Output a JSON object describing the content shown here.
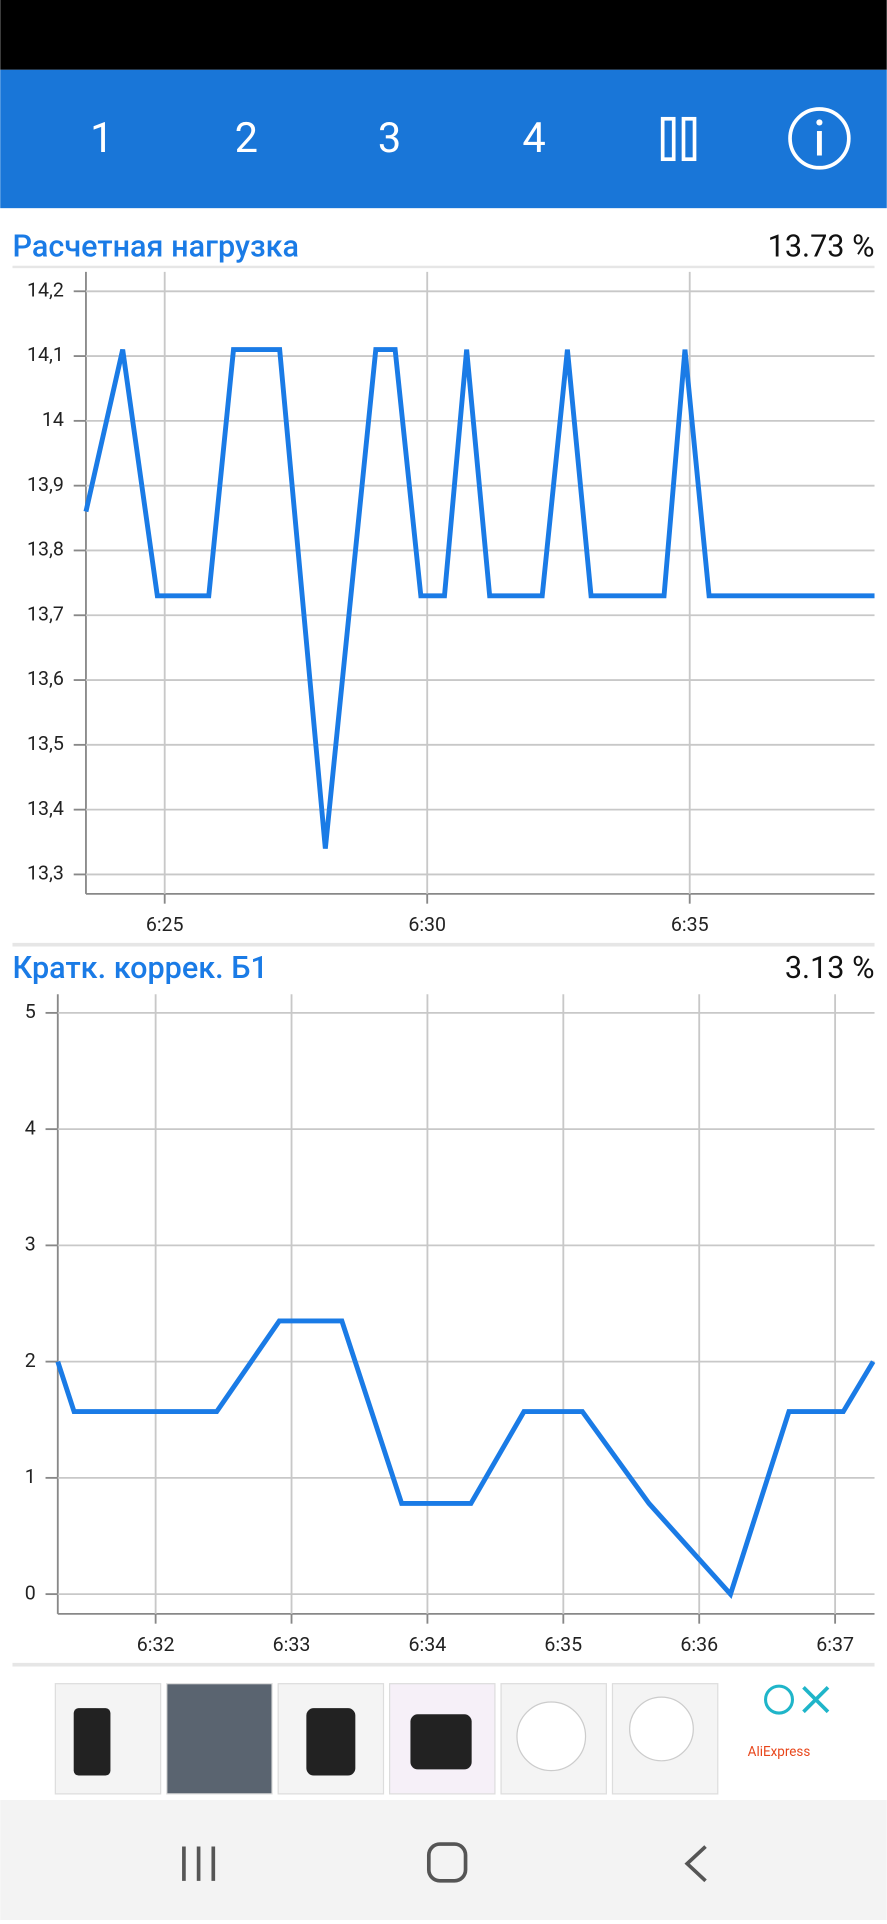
{
  "toolbar": {
    "tabs": [
      "1",
      "2",
      "3",
      "4"
    ]
  },
  "charts": [
    {
      "type": "line",
      "title": "Расчетная нагрузка",
      "current": "13.73 %",
      "color": "#1a7be6",
      "grid": true,
      "x": [
        383.5,
        384.2,
        384.86,
        385.84,
        386.31,
        387.19,
        388.06,
        389.02,
        389.39,
        389.88,
        390.33,
        390.75,
        391.19,
        392.19,
        392.67,
        393.12,
        394.51,
        394.91,
        395.37,
        398.52
      ],
      "values": [
        13.86,
        14.11,
        13.73,
        13.73,
        14.11,
        14.11,
        13.34,
        14.11,
        14.11,
        13.73,
        13.73,
        14.11,
        13.73,
        13.73,
        14.11,
        13.73,
        13.73,
        14.11,
        13.73,
        13.73
      ],
      "xlim": [
        383.5,
        398.52
      ],
      "xticks": [
        {
          "value": 385,
          "label": "6:25"
        },
        {
          "value": 390,
          "label": "6:30"
        },
        {
          "value": 395,
          "label": "6:35"
        }
      ],
      "ylim": [
        13.27,
        14.23
      ],
      "yticks": [
        {
          "value": 14.2,
          "label": "14,2"
        },
        {
          "value": 14.1,
          "label": "14,1"
        },
        14,
        {
          "value": 13.9,
          "label": "13,9"
        },
        {
          "value": 13.8,
          "label": "13,8"
        },
        {
          "value": 13.7,
          "label": "13,7"
        },
        {
          "value": 13.6,
          "label": "13,6"
        },
        {
          "value": 13.5,
          "label": "13,5"
        },
        {
          "value": 13.4,
          "label": "13,4"
        },
        {
          "value": 13.3,
          "label": "13,3"
        }
      ]
    },
    {
      "type": "line",
      "title": "Кратк. коррек. Б1",
      "current": "3.13 %",
      "color": "#1a7be6",
      "grid": true,
      "x": [
        391.28,
        391.4,
        392.45,
        392.91,
        393.37,
        393.81,
        394.32,
        394.71,
        395.14,
        395.63,
        396.23,
        396.66,
        397.06,
        397.28
      ],
      "values": [
        2.0,
        1.57,
        1.57,
        2.35,
        2.35,
        0.78,
        0.78,
        1.57,
        1.57,
        0.78,
        0,
        1.57,
        1.57,
        2.0
      ],
      "xlim": [
        391.28,
        397.29
      ],
      "xticks": [
        {
          "value": 392,
          "label": "6:32"
        },
        {
          "value": 393,
          "label": "6:33"
        },
        {
          "value": 394,
          "label": "6:34"
        },
        {
          "value": 395,
          "label": "6:35"
        },
        {
          "value": 396,
          "label": "6:36"
        },
        {
          "value": 397,
          "label": "6:37"
        }
      ],
      "ylim": [
        -0.17,
        5.16
      ],
      "yticks": [
        5,
        4,
        3,
        2,
        1,
        0
      ]
    }
  ],
  "ad": {
    "brand": "AliExpress"
  }
}
